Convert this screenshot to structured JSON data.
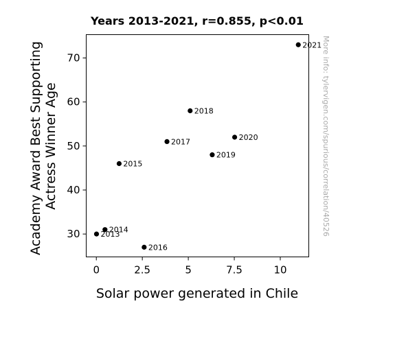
{
  "chart_data": {
    "type": "scatter",
    "title": "Years 2013-2021, r=0.855, p<0.01",
    "xlabel": "Solar power generated in Chile",
    "ylabel": "Academy Award Best Supporting Actress Winner Age",
    "ylabel_lines": [
      "Academy Award Best Supporting",
      "Actress Winner Age"
    ],
    "xlim": [
      -0.55,
      11.55
    ],
    "ylim": [
      24.8,
      75.3
    ],
    "xticks": [
      0,
      2.5,
      5,
      7.5,
      10
    ],
    "xtick_labels": [
      "0",
      "2.5",
      "5",
      "7.5",
      "10"
    ],
    "yticks": [
      30,
      40,
      50,
      60,
      70
    ],
    "ytick_labels": [
      "30",
      "40",
      "50",
      "60",
      "70"
    ],
    "points": [
      {
        "label": "2013",
        "x": 0.01,
        "y": 30
      },
      {
        "label": "2014",
        "x": 0.47,
        "y": 31
      },
      {
        "label": "2015",
        "x": 1.24,
        "y": 46
      },
      {
        "label": "2016",
        "x": 2.6,
        "y": 27
      },
      {
        "label": "2017",
        "x": 3.84,
        "y": 51
      },
      {
        "label": "2018",
        "x": 5.1,
        "y": 58
      },
      {
        "label": "2019",
        "x": 6.3,
        "y": 48
      },
      {
        "label": "2020",
        "x": 7.52,
        "y": 52
      },
      {
        "label": "2021",
        "x": 10.98,
        "y": 73
      }
    ],
    "point_color": "#000000",
    "grid": false,
    "watermark": "More info: tylervigen.com/spurious/correlation/40526"
  }
}
